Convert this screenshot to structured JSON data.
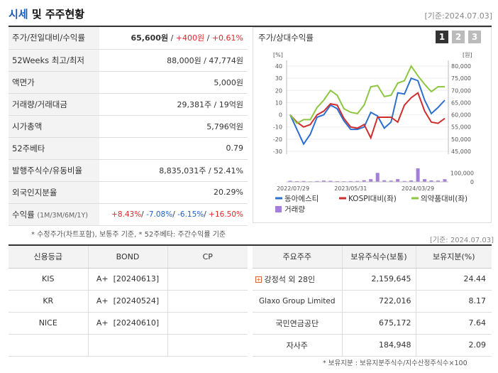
{
  "header": {
    "title_prefix": "시세",
    "title_rest": " 및 주주현황",
    "date": "[기준:2024.07.03]"
  },
  "info": {
    "rows": [
      {
        "label": "주가/전일대비/수익률"
      },
      {
        "label": "52Weeks 최고/최저",
        "value": "88,000원 / 47,774원"
      },
      {
        "label": "액면가",
        "value": "5,000원"
      },
      {
        "label": "거래량/거래대금",
        "value": "29,381주 / 19억원"
      },
      {
        "label": "시가총액",
        "value": "5,796억원"
      },
      {
        "label": "52주베타",
        "value": "0.79"
      },
      {
        "label": "발행주식수/유동비율",
        "value": "8,835,031주 / 52.41%"
      },
      {
        "label": "외국인지분율",
        "value": "20.29%"
      },
      {
        "label": "수익률"
      }
    ],
    "price": "65,600원",
    "sep1": " / ",
    "change": "+400원",
    "sep2": " / ",
    "rate": "+0.61%",
    "returns_periods": "(1M/3M/6M/1Y)",
    "r1": "+8.43%",
    "r2": "-7.08%",
    "r3": "-6.15%",
    "r4": "+16.50%",
    "slash": "/ "
  },
  "footnote": "* 수정주가(차트포함), 보통주 기준, * 52주베타: 주간수익률 기준",
  "date2": "[기준: 2024.07.03]",
  "chart_panel": {
    "title": "주가/상대수익률",
    "page_buttons": [
      "1",
      "2",
      "3"
    ]
  },
  "chart_data": {
    "type": "line",
    "x": [
      "2022/07/29",
      "2022/09",
      "2022/10",
      "2022/11",
      "2022/12",
      "2023/01",
      "2023/02",
      "2023/03",
      "2023/04",
      "2023/05/31",
      "2023/06",
      "2023/07",
      "2023/08",
      "2023/09",
      "2023/10",
      "2023/11",
      "2023/12",
      "2024/01",
      "2024/02",
      "2024/03/29",
      "2024/04",
      "2024/05",
      "2024/06",
      "2024/07"
    ],
    "x_tick_labels": [
      "2022/07/29",
      "2023/05/31",
      "2024/03/29"
    ],
    "left_axis": {
      "unit": "[%]",
      "ticks": [
        "40",
        "30",
        "20",
        "10",
        "0",
        "-10",
        "-20",
        "-30"
      ],
      "ylim": [
        -30,
        40
      ]
    },
    "right_axis": {
      "unit": "[원]",
      "ticks": [
        "80,000",
        "75,000",
        "70,000",
        "65,000",
        "60,000",
        "55,000",
        "50,000",
        "45,000"
      ],
      "ylim": [
        45000,
        80000
      ]
    },
    "volume_axis": {
      "ticks": [
        "100,000",
        "0"
      ],
      "ylim": [
        0,
        150000
      ]
    },
    "series": [
      {
        "name": "동아에스티",
        "color": "#2d6fd0",
        "values": [
          0,
          -12,
          -24,
          -16,
          -2,
          0,
          8,
          5,
          -5,
          -12,
          -12,
          -10,
          2,
          -1,
          -11,
          -6,
          18,
          17,
          30,
          28,
          12,
          1,
          6,
          12
        ]
      },
      {
        "name": "KOSPI대비(좌)",
        "color": "#cf2e2e",
        "values": [
          0,
          -6,
          -10,
          -8,
          0,
          3,
          9,
          8,
          -3,
          -10,
          -11,
          -8,
          -19,
          -2,
          -2,
          -2,
          -6,
          8,
          14,
          18,
          3,
          -6,
          -7,
          -3
        ]
      },
      {
        "name": "의약품대비(좌)",
        "color": "#8dc63f",
        "values": [
          0,
          -7,
          -4,
          -4,
          6,
          12,
          20,
          16,
          5,
          2,
          1,
          8,
          23,
          24,
          15,
          16,
          26,
          28,
          40,
          32,
          25,
          19,
          23,
          23
        ]
      },
      {
        "name": "거래량",
        "color": "#a47fd8",
        "values": [
          12000,
          8000,
          10000,
          6000,
          9000,
          14000,
          12000,
          8000,
          7000,
          9000,
          10000,
          18000,
          30000,
          100000,
          18000,
          14000,
          30000,
          10000,
          16000,
          160000,
          30000,
          16000,
          14000,
          30000
        ]
      }
    ]
  },
  "credit_table": {
    "headers": [
      "신용등급",
      "BOND",
      "CP"
    ],
    "rows": [
      {
        "agency": "KIS",
        "bond": "A+  [20240613]",
        "cp": ""
      },
      {
        "agency": "KR",
        "bond": "A+  [20240524]",
        "cp": ""
      },
      {
        "agency": "NICE",
        "bond": "A+  [20240610]",
        "cp": ""
      },
      {
        "agency": "",
        "bond": "",
        "cp": ""
      }
    ]
  },
  "holder_table": {
    "headers": [
      "주요주주",
      "보유주식수(보통)",
      "보유지분(%)"
    ],
    "rows": [
      {
        "name": "강정석 외 28인",
        "shares": "2,159,645",
        "pct": "24.44"
      },
      {
        "name": "Glaxo Group Limited",
        "shares": "722,016",
        "pct": "8.17"
      },
      {
        "name": "국민연금공단",
        "shares": "675,172",
        "pct": "7.64"
      },
      {
        "name": "자사주",
        "shares": "184,948",
        "pct": "2.09"
      }
    ],
    "footnote": "* 보유지분 : 보유지분주식수/지수산정주식수×100"
  },
  "colors": {
    "up": "#e0262b",
    "down": "#1f60c8",
    "accent_blue": "#1a5fb4"
  }
}
